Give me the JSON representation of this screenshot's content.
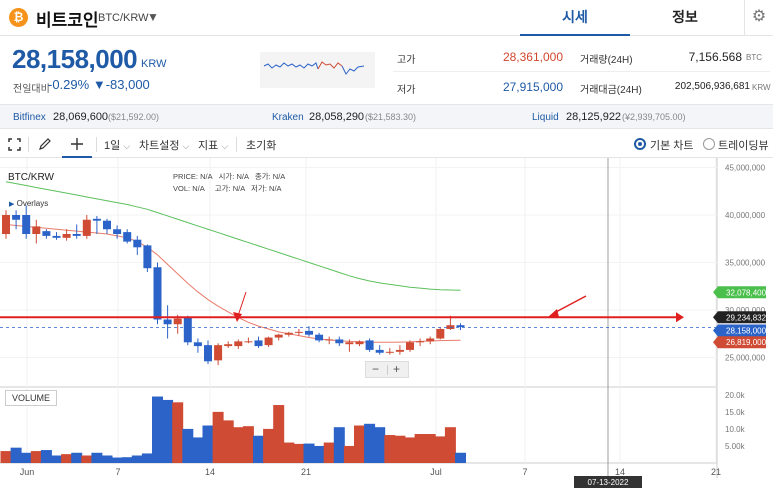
{
  "header": {
    "coin_icon": "bitcoin-icon",
    "coin_icon_glyph": "₿",
    "coin_name": "비트코인",
    "pair": "BTC/KRW",
    "dropdown_glyph": "▼",
    "tabs": [
      {
        "label": "시세"
      },
      {
        "label": "정보"
      }
    ],
    "settings_glyph": "⚙"
  },
  "price": {
    "current": "28,158,000",
    "unit": "KRW",
    "change_label": "전일대비",
    "change_pct": "-0.29%",
    "change_amt": "▼-83,000"
  },
  "stats": [
    {
      "label": "고가",
      "value": "28,361,000",
      "color": "#d2462f"
    },
    {
      "label": "거래량(24H)",
      "value": "7,156.568",
      "unit": "BTC",
      "color": "#222222"
    },
    {
      "label": "저가",
      "value": "27,915,000",
      "color": "#1f5aa6"
    },
    {
      "label": "거래대금(24H)",
      "value": "202,506,936,681",
      "unit": "KRW",
      "color": "#222222"
    }
  ],
  "exchanges": [
    {
      "name": "Bitfinex",
      "price": "28,069,600",
      "usd": "($21,592.00)"
    },
    {
      "name": "Kraken",
      "price": "28,058,290",
      "usd": "($21,583.30)"
    },
    {
      "name": "Liquid",
      "price": "28,125,922",
      "usd": "(¥2,939,705.00)"
    }
  ],
  "toolbar": {
    "expand_icon": "expand-icon",
    "pencil_icon": "pencil-icon",
    "crosshair_icon": "crosshair-icon",
    "period": "1일",
    "chart_settings": "차트설정",
    "indicators": "지표",
    "reset": "초기화",
    "chevron": "⌵",
    "basic_chart": "기본 차트",
    "trading_view": "트레이딩뷰"
  },
  "chart": {
    "symbol": "BTC/KRW",
    "overlays": "Overlays",
    "info": [
      {
        "label": "PRICE:",
        "value": "N/A"
      },
      {
        "label": "시가:",
        "value": "N/A"
      },
      {
        "label": "종가:",
        "value": "N/A"
      },
      {
        "label": "VOL:",
        "value": "N/A"
      },
      {
        "label": "고가:",
        "value": "N/A"
      },
      {
        "label": "저가:",
        "value": "N/A"
      }
    ],
    "y_ticks": [
      "45,000,000",
      "40,000,000",
      "35,000,000",
      "30,000,000",
      "25,000,000"
    ],
    "vol_ticks": [
      "20.0k",
      "15.0k",
      "10.0k",
      "5.00k"
    ],
    "x_ticks": [
      "Jun",
      "7",
      "14",
      "21",
      "Jul",
      "7",
      "14",
      "21"
    ],
    "date_label": "07-13-2022",
    "volume_label": "VOLUME",
    "tags": {
      "ma_green": "32,078,400",
      "level": "29,234,832",
      "price": "28,158,000",
      "ma_red": "26,819,000"
    },
    "up_color": "#cf4b33",
    "down_color": "#2b63c9",
    "zoom_minus": "−",
    "zoom_plus": "+"
  },
  "chart_data": {
    "type": "candlestick",
    "series": [
      {
        "name": "BTC/KRW"
      }
    ],
    "ylim": [
      22000000,
      46000000
    ],
    "candles": [
      [
        38000000,
        40500000,
        40000000,
        37500000
      ],
      [
        40000000,
        40500000,
        39500000,
        38500000
      ],
      [
        40000000,
        41000000,
        38000000,
        37500000
      ],
      [
        38000000,
        39500000,
        38800000,
        37000000
      ],
      [
        38300000,
        38500000,
        37800000,
        37500000
      ],
      [
        37800000,
        38200000,
        37600000,
        37400000
      ],
      [
        37600000,
        38500000,
        38000000,
        37300000
      ],
      [
        38000000,
        39000000,
        37800000,
        37500000
      ],
      [
        37800000,
        40000000,
        39500000,
        37500000
      ],
      [
        39600000,
        39900000,
        39400000,
        38000000
      ],
      [
        39400000,
        39600000,
        38500000,
        38000000
      ],
      [
        38500000,
        38900000,
        38000000,
        37500000
      ],
      [
        38200000,
        38500000,
        37200000,
        37000000
      ],
      [
        37400000,
        37800000,
        36600000,
        35800000
      ],
      [
        36800000,
        36900000,
        34400000,
        34000000
      ],
      [
        34500000,
        35000000,
        29000000,
        28500000
      ],
      [
        29000000,
        30500000,
        28500000,
        27000000
      ],
      [
        28500000,
        29500000,
        29100000,
        27500000
      ],
      [
        29200000,
        29400000,
        26600000,
        26300000
      ],
      [
        26600000,
        27000000,
        26200000,
        25500000
      ],
      [
        26300000,
        26800000,
        24600000,
        24300000
      ],
      [
        24700000,
        26500000,
        26300000,
        24200000
      ],
      [
        26200000,
        26700000,
        26400000,
        26000000
      ],
      [
        26200000,
        26900000,
        26700000,
        25900000
      ],
      [
        26700000,
        27100000,
        26700000,
        26500000
      ],
      [
        26800000,
        27200000,
        26200000,
        26000000
      ],
      [
        26300000,
        27200000,
        27100000,
        26100000
      ],
      [
        27100000,
        27500000,
        27400000,
        26800000
      ],
      [
        27400000,
        27700000,
        27600000,
        27200000
      ],
      [
        27700000,
        28000000,
        27700000,
        27300000
      ],
      [
        27800000,
        28300000,
        27400000,
        27200000
      ],
      [
        27400000,
        27600000,
        26800000,
        26600000
      ],
      [
        26800000,
        27200000,
        26900000,
        26400000
      ],
      [
        26900000,
        27200000,
        26500000,
        26200000
      ],
      [
        26400000,
        26900000,
        26600000,
        25600000
      ],
      [
        26400000,
        26800000,
        26700000,
        26200000
      ],
      [
        26800000,
        27000000,
        25800000,
        25600000
      ],
      [
        25800000,
        26300000,
        25500000,
        25300000
      ],
      [
        25600000,
        26000000,
        25600000,
        25300000
      ],
      [
        25600000,
        26300000,
        25800000,
        25300000
      ],
      [
        25800000,
        26800000,
        26600000,
        25600000
      ],
      [
        26600000,
        27000000,
        26700000,
        26200000
      ],
      [
        26700000,
        27200000,
        27000000,
        26400000
      ],
      [
        27000000,
        28200000,
        28000000,
        26900000
      ],
      [
        28000000,
        29400000,
        28400000,
        27900000
      ],
      [
        28400000,
        28600000,
        28200000,
        27900000
      ]
    ],
    "volume": [
      3500,
      4500,
      3000,
      3500,
      3800,
      2200,
      2600,
      3000,
      2200,
      3000,
      2200,
      1600,
      1700,
      2200,
      2800,
      19500,
      18500,
      17800,
      10000,
      7500,
      11000,
      15000,
      12500,
      10500,
      10800,
      8000,
      10000,
      17000,
      6000,
      5600,
      5700,
      5000,
      6000,
      10500,
      5000,
      11000,
      11500,
      10500,
      8200,
      8000,
      7500,
      8500,
      8500,
      7800,
      10500,
      3000
    ],
    "ma_red": [
      39000000,
      38900000,
      38800000,
      38700000,
      38600000,
      38500000,
      38400000,
      38300000,
      38200000,
      38100000,
      38000000,
      37800000,
      37600000,
      37200000,
      36600000,
      35800000,
      34800000,
      33800000,
      32800000,
      31900000,
      31100000,
      30400000,
      29800000,
      29200000,
      28700000,
      28300000,
      28000000,
      27700000,
      27500000,
      27300000,
      27100000,
      26950000,
      26850000,
      26750000,
      26700000,
      26650000,
      26600000,
      26600000,
      26600000,
      26620000,
      26650000,
      26700000,
      26740000,
      26780000,
      26800000,
      26819000
    ],
    "ma_green": [
      43500000,
      43300000,
      43100000,
      42900000,
      42700000,
      42500000,
      42300000,
      42100000,
      41900000,
      41700000,
      41500000,
      41300000,
      41100000,
      40850000,
      40600000,
      40250000,
      39900000,
      39550000,
      39200000,
      38850000,
      38500000,
      38150000,
      37800000,
      37450000,
      37100000,
      36750000,
      36400000,
      36050000,
      35700000,
      35350000,
      35000000,
      34650000,
      34300000,
      33950000,
      33600000,
      33300000,
      33050000,
      32850000,
      32700000,
      32550000,
      32400000,
      32300000,
      32200000,
      32130000,
      32100000,
      32078400
    ],
    "horizontal_level": 29234832,
    "current_price": 28158000
  }
}
